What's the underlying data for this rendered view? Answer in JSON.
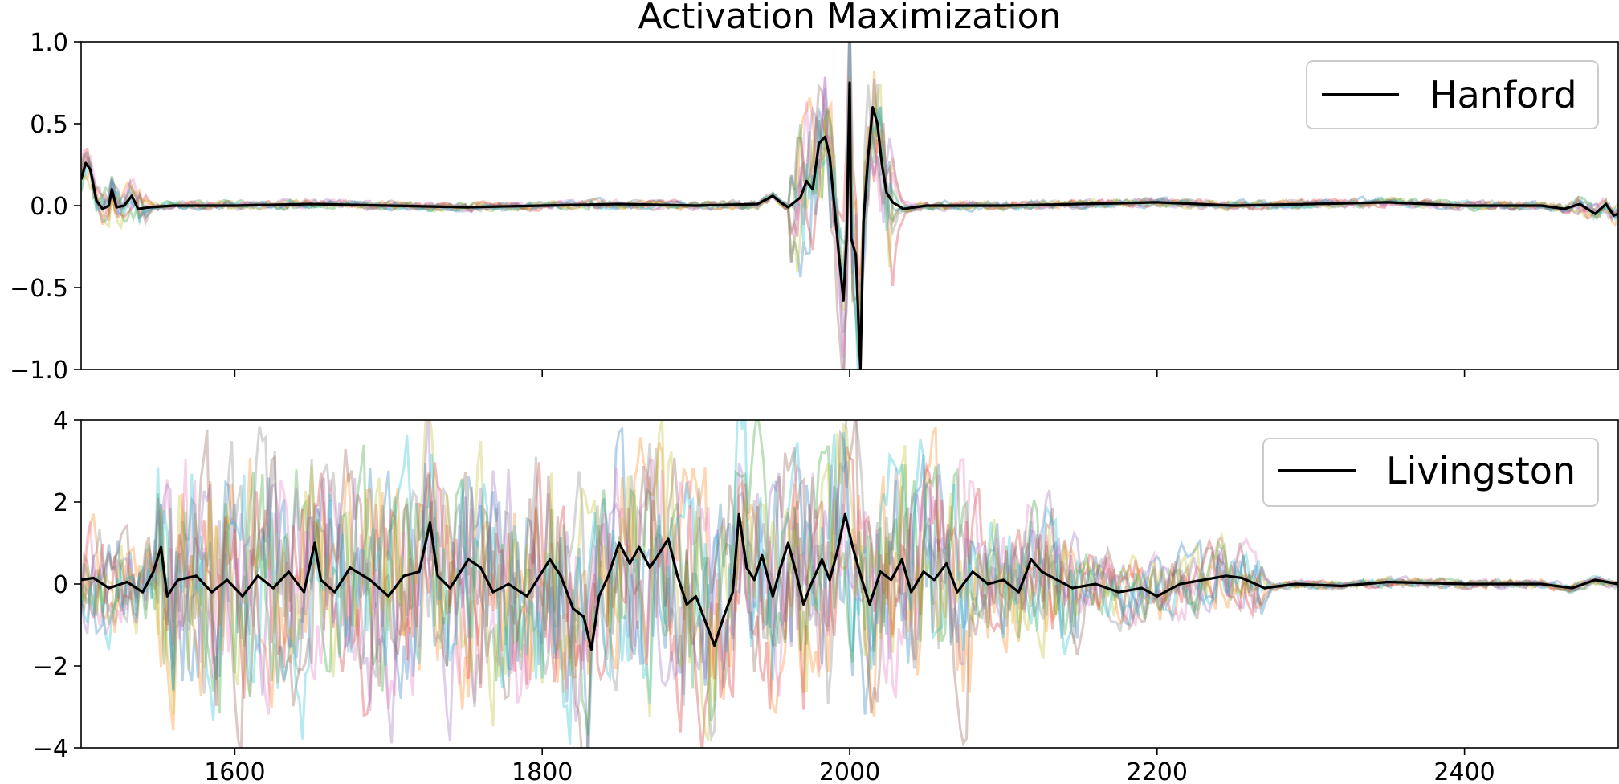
{
  "figure_title": "Activation Maximization",
  "colors": {
    "main": "#000000",
    "samples": [
      "#1f77b4",
      "#ff7f0e",
      "#2ca02c",
      "#d62728",
      "#9467bd",
      "#8c564b",
      "#e377c2",
      "#7f7f7f",
      "#bcbd22",
      "#17becf"
    ]
  },
  "chart_data": [
    {
      "type": "line",
      "title": "Activation Maximization",
      "xlabel": "",
      "ylabel": "",
      "xlim": [
        1500,
        2500
      ],
      "ylim": [
        -1.0,
        1.0
      ],
      "xticks": [
        1600,
        1800,
        2000,
        2200,
        2400
      ],
      "xtick_labels_visible": false,
      "yticks": [
        -1.0,
        -0.5,
        0.0,
        0.5,
        1.0
      ],
      "ytick_labels": [
        "−1.0",
        "−0.5",
        "0.0",
        "0.5",
        "1.0"
      ],
      "legend": {
        "label": "Hanford",
        "position": "top-right"
      },
      "series": [
        {
          "name": "Hanford",
          "color": "#000000",
          "points": [
            [
              1500,
              0.16
            ],
            [
              1503,
              0.26
            ],
            [
              1506,
              0.22
            ],
            [
              1510,
              0.03
            ],
            [
              1514,
              -0.02
            ],
            [
              1518,
              0.0
            ],
            [
              1520,
              0.1
            ],
            [
              1523,
              -0.01
            ],
            [
              1528,
              0.0
            ],
            [
              1533,
              0.06
            ],
            [
              1537,
              -0.02
            ],
            [
              1545,
              -0.01
            ],
            [
              1560,
              0.0
            ],
            [
              1600,
              0.0
            ],
            [
              1650,
              0.01
            ],
            [
              1700,
              0.0
            ],
            [
              1750,
              -0.01
            ],
            [
              1800,
              0.0
            ],
            [
              1850,
              0.01
            ],
            [
              1900,
              0.0
            ],
            [
              1940,
              0.01
            ],
            [
              1950,
              0.06
            ],
            [
              1955,
              0.02
            ],
            [
              1960,
              -0.01
            ],
            [
              1968,
              0.05
            ],
            [
              1972,
              0.15
            ],
            [
              1976,
              0.1
            ],
            [
              1980,
              0.38
            ],
            [
              1984,
              0.42
            ],
            [
              1987,
              0.3
            ],
            [
              1990,
              0.0
            ],
            [
              1993,
              -0.3
            ],
            [
              1996,
              -0.58
            ],
            [
              1998,
              -0.2
            ],
            [
              2000,
              0.75
            ],
            [
              2001,
              -0.2
            ],
            [
              2004,
              -0.3
            ],
            [
              2007,
              -1.0
            ],
            [
              2009,
              -0.1
            ],
            [
              2012,
              0.3
            ],
            [
              2015,
              0.6
            ],
            [
              2018,
              0.5
            ],
            [
              2021,
              0.25
            ],
            [
              2024,
              0.08
            ],
            [
              2028,
              0.02
            ],
            [
              2035,
              -0.02
            ],
            [
              2050,
              0.0
            ],
            [
              2100,
              0.0
            ],
            [
              2150,
              0.01
            ],
            [
              2200,
              0.02
            ],
            [
              2250,
              0.0
            ],
            [
              2300,
              0.01
            ],
            [
              2350,
              0.02
            ],
            [
              2400,
              0.0
            ],
            [
              2450,
              0.0
            ],
            [
              2465,
              -0.02
            ],
            [
              2475,
              0.01
            ],
            [
              2485,
              -0.05
            ],
            [
              2492,
              0.01
            ],
            [
              2497,
              -0.06
            ],
            [
              2500,
              -0.05
            ]
          ]
        }
      ]
    },
    {
      "type": "line",
      "title": "",
      "xlabel": "",
      "ylabel": "",
      "xlim": [
        1500,
        2500
      ],
      "ylim": [
        -4,
        4
      ],
      "xticks": [
        1600,
        1800,
        2000,
        2200,
        2400
      ],
      "xtick_labels": [
        "1600",
        "1800",
        "2000",
        "2200",
        "2400"
      ],
      "yticks": [
        -4,
        -2,
        0,
        2,
        4
      ],
      "ytick_labels": [
        "−4",
        "−2",
        "0",
        "2",
        "4"
      ],
      "legend": {
        "label": "Livingston",
        "position": "top-right"
      },
      "series": [
        {
          "name": "Livingston",
          "color": "#000000",
          "points": [
            [
              1500,
              0.1
            ],
            [
              1508,
              0.15
            ],
            [
              1518,
              -0.1
            ],
            [
              1530,
              0.05
            ],
            [
              1540,
              -0.2
            ],
            [
              1547,
              0.3
            ],
            [
              1552,
              0.9
            ],
            [
              1556,
              -0.3
            ],
            [
              1563,
              0.1
            ],
            [
              1575,
              0.2
            ],
            [
              1585,
              -0.2
            ],
            [
              1595,
              0.1
            ],
            [
              1605,
              -0.3
            ],
            [
              1615,
              0.2
            ],
            [
              1625,
              -0.1
            ],
            [
              1635,
              0.3
            ],
            [
              1645,
              -0.2
            ],
            [
              1652,
              1.0
            ],
            [
              1656,
              0.1
            ],
            [
              1665,
              -0.2
            ],
            [
              1675,
              0.4
            ],
            [
              1688,
              0.1
            ],
            [
              1700,
              -0.3
            ],
            [
              1710,
              0.2
            ],
            [
              1720,
              0.3
            ],
            [
              1727,
              1.5
            ],
            [
              1732,
              0.2
            ],
            [
              1740,
              -0.1
            ],
            [
              1752,
              0.6
            ],
            [
              1760,
              0.4
            ],
            [
              1768,
              -0.2
            ],
            [
              1778,
              0.0
            ],
            [
              1790,
              -0.3
            ],
            [
              1800,
              0.3
            ],
            [
              1805,
              0.6
            ],
            [
              1812,
              0.2
            ],
            [
              1820,
              -0.6
            ],
            [
              1827,
              -0.8
            ],
            [
              1832,
              -1.6
            ],
            [
              1837,
              -0.3
            ],
            [
              1843,
              0.2
            ],
            [
              1850,
              1.0
            ],
            [
              1857,
              0.5
            ],
            [
              1863,
              0.9
            ],
            [
              1870,
              0.4
            ],
            [
              1877,
              0.8
            ],
            [
              1882,
              1.1
            ],
            [
              1888,
              0.2
            ],
            [
              1894,
              -0.5
            ],
            [
              1900,
              -0.3
            ],
            [
              1906,
              -0.9
            ],
            [
              1912,
              -1.5
            ],
            [
              1918,
              -0.8
            ],
            [
              1924,
              -0.2
            ],
            [
              1928,
              1.7
            ],
            [
              1933,
              0.4
            ],
            [
              1938,
              0.1
            ],
            [
              1943,
              0.7
            ],
            [
              1950,
              -0.3
            ],
            [
              1955,
              0.4
            ],
            [
              1960,
              1.0
            ],
            [
              1965,
              0.3
            ],
            [
              1970,
              -0.5
            ],
            [
              1975,
              0.0
            ],
            [
              1982,
              0.6
            ],
            [
              1987,
              0.1
            ],
            [
              1992,
              0.8
            ],
            [
              1997,
              1.7
            ],
            [
              2002,
              0.9
            ],
            [
              2008,
              0.1
            ],
            [
              2013,
              -0.5
            ],
            [
              2020,
              0.3
            ],
            [
              2027,
              0.1
            ],
            [
              2034,
              0.6
            ],
            [
              2040,
              -0.2
            ],
            [
              2048,
              0.3
            ],
            [
              2055,
              0.1
            ],
            [
              2063,
              0.5
            ],
            [
              2070,
              -0.2
            ],
            [
              2080,
              0.3
            ],
            [
              2090,
              0.0
            ],
            [
              2100,
              0.1
            ],
            [
              2110,
              -0.2
            ],
            [
              2118,
              0.6
            ],
            [
              2125,
              0.3
            ],
            [
              2135,
              0.1
            ],
            [
              2145,
              -0.1
            ],
            [
              2160,
              0.0
            ],
            [
              2175,
              -0.2
            ],
            [
              2190,
              -0.1
            ],
            [
              2200,
              -0.3
            ],
            [
              2215,
              0.0
            ],
            [
              2230,
              0.1
            ],
            [
              2245,
              0.2
            ],
            [
              2255,
              0.15
            ],
            [
              2270,
              -0.1
            ],
            [
              2290,
              0.0
            ],
            [
              2320,
              -0.05
            ],
            [
              2350,
              0.05
            ],
            [
              2400,
              0.0
            ],
            [
              2450,
              0.0
            ],
            [
              2470,
              -0.1
            ],
            [
              2485,
              0.1
            ],
            [
              2500,
              0.0
            ]
          ]
        }
      ]
    }
  ]
}
